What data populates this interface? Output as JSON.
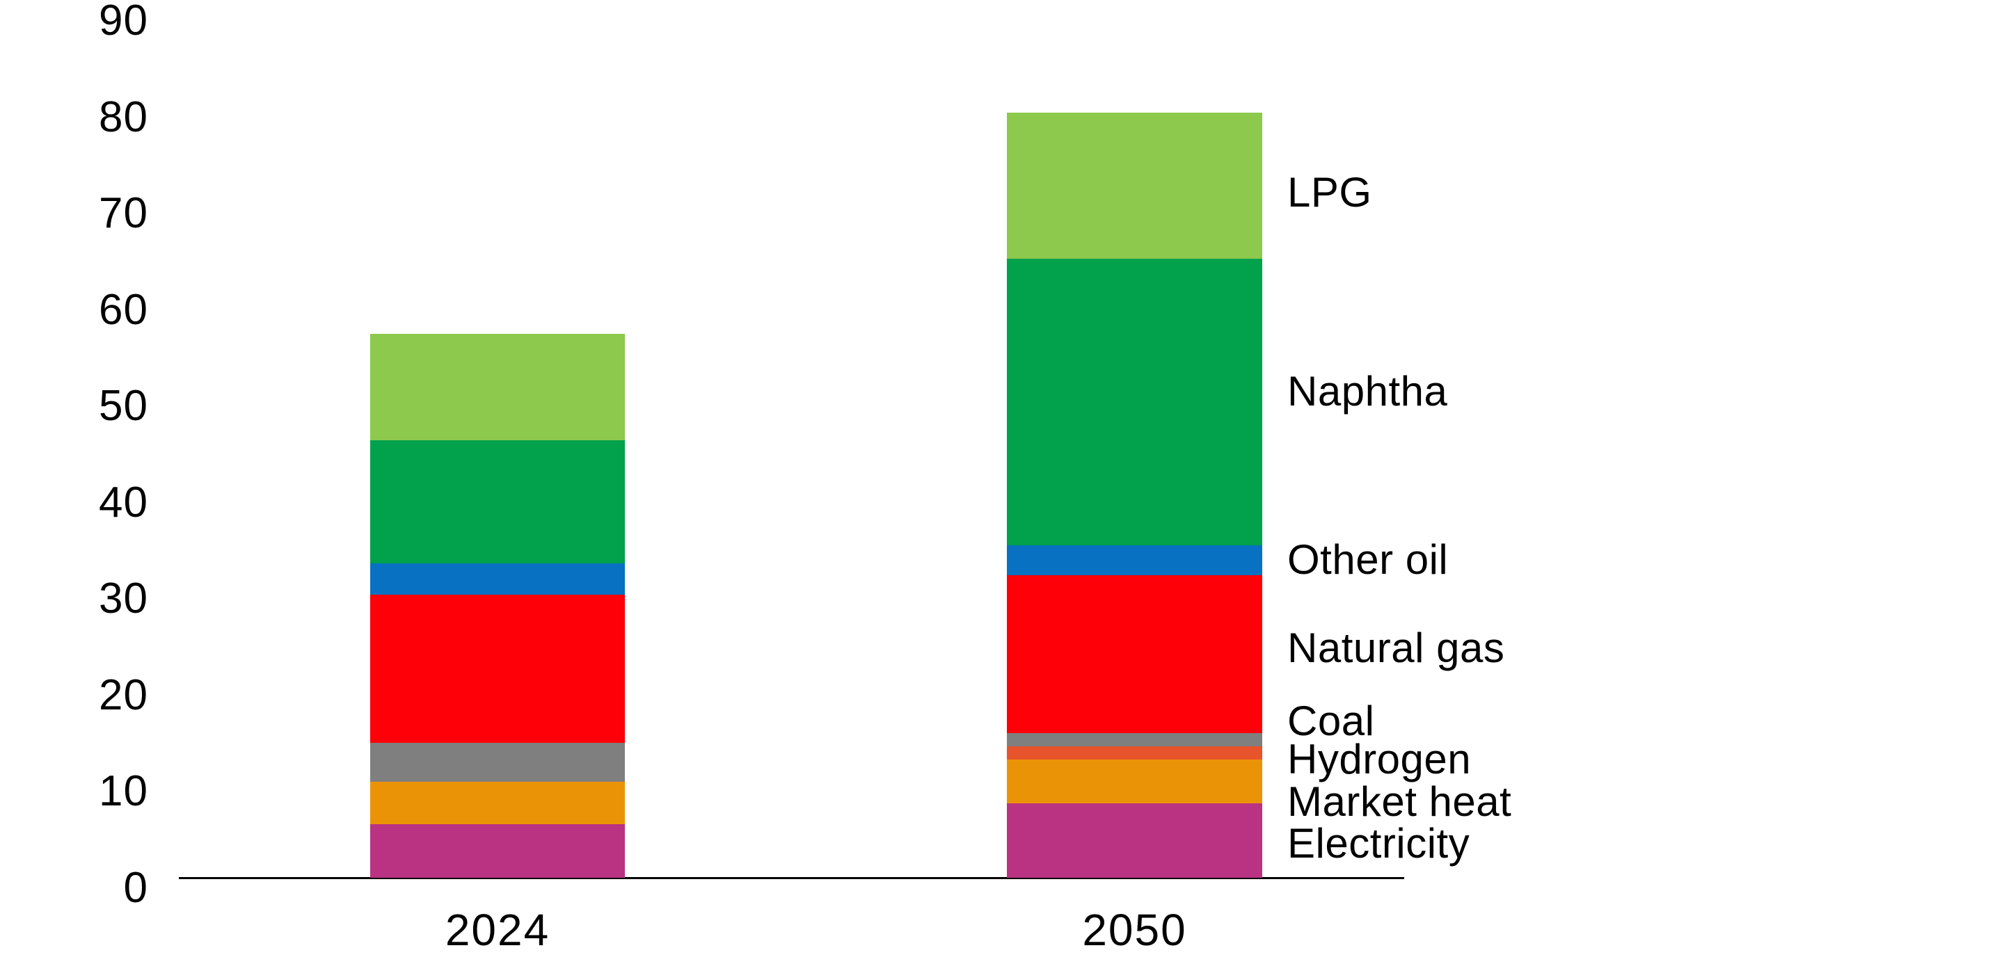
{
  "chart_data": {
    "type": "bar",
    "stacked": true,
    "title": "",
    "xlabel": "",
    "ylabel": "",
    "categories": [
      "2024",
      "2050"
    ],
    "series": [
      {
        "name": "Electricity",
        "color": "#b93382",
        "values": [
          5.6,
          7.8
        ]
      },
      {
        "name": "Market heat",
        "color": "#eb9307",
        "values": [
          4.5,
          4.6
        ]
      },
      {
        "name": "Hydrogen",
        "color": "#e7532b",
        "values": [
          0,
          1.4
        ]
      },
      {
        "name": "Coal",
        "color": "#7f7f7f",
        "values": [
          4.1,
          1.4
        ]
      },
      {
        "name": "Natural gas",
        "color": "#fd0008",
        "values": [
          15.6,
          16.6
        ]
      },
      {
        "name": "Other oil",
        "color": "#0871c2",
        "values": [
          3.3,
          3.2
        ]
      },
      {
        "name": "Naphtha",
        "color": "#02a14c",
        "values": [
          12.9,
          30.1
        ]
      },
      {
        "name": "LPG",
        "color": "#8cc94d",
        "values": [
          11.2,
          15.4
        ]
      }
    ],
    "totals": [
      57.2,
      80.5
    ],
    "ylim": [
      0,
      90
    ],
    "yticks": [
      0,
      10,
      20,
      30,
      40,
      50,
      60,
      70,
      80,
      90
    ],
    "grid": false,
    "legend_position": "right",
    "legend_order_top_to_bottom": [
      "LPG",
      "Naphtha",
      "Other oil",
      "Natural gas",
      "Coal",
      "Hydrogen",
      "Market heat",
      "Electricity"
    ],
    "text_color": "#000000",
    "axis_color": "#000000"
  }
}
